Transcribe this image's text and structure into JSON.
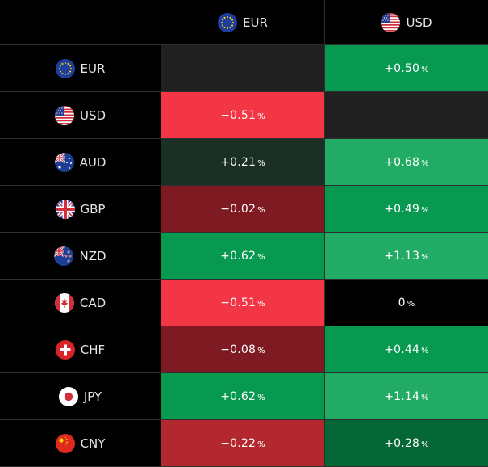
{
  "columns": [
    {
      "code": "EUR",
      "flag": "eu-flag-icon"
    },
    {
      "code": "USD",
      "flag": "us-flag-icon"
    }
  ],
  "rows": [
    {
      "code": "EUR",
      "flag": "eu-flag-icon",
      "cells": [
        {
          "text": "",
          "color": "#202020"
        },
        {
          "text": "+0.50",
          "color": "#089950"
        }
      ]
    },
    {
      "code": "USD",
      "flag": "us-flag-icon",
      "cells": [
        {
          "text": "−0.51",
          "color": "#F23645"
        },
        {
          "text": "",
          "color": "#202020"
        }
      ]
    },
    {
      "code": "AUD",
      "flag": "au-flag-icon",
      "cells": [
        {
          "text": "+0.21",
          "color": "#1B3024"
        },
        {
          "text": "+0.68",
          "color": "#22AB64"
        }
      ]
    },
    {
      "code": "GBP",
      "flag": "gb-flag-icon",
      "cells": [
        {
          "text": "−0.02",
          "color": "#7F1A22"
        },
        {
          "text": "+0.49",
          "color": "#089950"
        }
      ]
    },
    {
      "code": "NZD",
      "flag": "nz-flag-icon",
      "cells": [
        {
          "text": "+0.62",
          "color": "#089950"
        },
        {
          "text": "+1.13",
          "color": "#22AB64"
        }
      ]
    },
    {
      "code": "CAD",
      "flag": "ca-flag-icon",
      "cells": [
        {
          "text": "−0.51",
          "color": "#F23645"
        },
        {
          "text": "0",
          "color": "#000000"
        }
      ]
    },
    {
      "code": "CHF",
      "flag": "ch-flag-icon",
      "cells": [
        {
          "text": "−0.08",
          "color": "#7F1A22"
        },
        {
          "text": "+0.44",
          "color": "#089950"
        }
      ]
    },
    {
      "code": "JPY",
      "flag": "jp-flag-icon",
      "cells": [
        {
          "text": "+0.62",
          "color": "#089950"
        },
        {
          "text": "+1.14",
          "color": "#22AB64"
        }
      ]
    },
    {
      "code": "CNY",
      "flag": "cn-flag-icon",
      "cells": [
        {
          "text": "−0.22",
          "color": "#B2282E"
        },
        {
          "text": "+0.28",
          "color": "#056636"
        }
      ]
    }
  ],
  "percent_sign": "%"
}
